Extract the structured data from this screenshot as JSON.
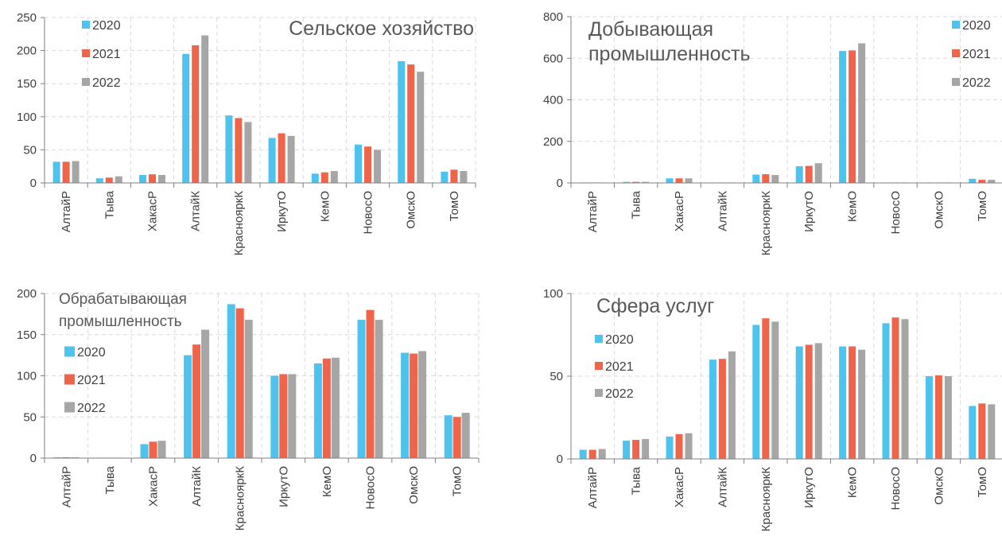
{
  "colors": {
    "2020": "#4ec3ee",
    "2021": "#f0644a",
    "2022": "#a6a6a6"
  },
  "chart_data": [
    {
      "type": "bar",
      "title_lines": [
        "Сельское хозяйство"
      ],
      "categories": [
        "АлтайР",
        "Тыва",
        "ХакасР",
        "АлтайК",
        "КраснояркК",
        "ИркутО",
        "КемО",
        "НовосО",
        "ОмскО",
        "ТомО"
      ],
      "series": [
        {
          "name": "2020",
          "values": [
            32,
            7,
            12,
            195,
            102,
            68,
            14,
            58,
            184,
            17
          ]
        },
        {
          "name": "2021",
          "values": [
            32,
            8,
            13,
            208,
            98,
            75,
            16,
            55,
            179,
            20
          ]
        },
        {
          "name": "2022",
          "values": [
            33,
            10,
            12,
            223,
            92,
            71,
            18,
            50,
            168,
            18
          ]
        }
      ],
      "ylim": [
        0,
        250
      ],
      "yticks": [
        0,
        50,
        100,
        150,
        200,
        250
      ],
      "grid": true,
      "legend": "top-left"
    },
    {
      "type": "bar",
      "title_lines": [
        "Добывающая",
        "промышленность"
      ],
      "categories": [
        "АлтайР",
        "Тыва",
        "ХакасР",
        "АлтайК",
        "КраснояркК",
        "ИркутО",
        "КемО",
        "НовосО",
        "ОмскО",
        "ТомО"
      ],
      "series": [
        {
          "name": "2020",
          "values": [
            1,
            5,
            22,
            1,
            40,
            80,
            635,
            1,
            1,
            20
          ]
        },
        {
          "name": "2021",
          "values": [
            1,
            5,
            22,
            1,
            42,
            82,
            638,
            1,
            1,
            15
          ]
        },
        {
          "name": "2022",
          "values": [
            1,
            5,
            22,
            1,
            38,
            95,
            672,
            1,
            1,
            15
          ]
        }
      ],
      "ylim": [
        0,
        800
      ],
      "yticks": [
        0,
        200,
        400,
        600,
        800
      ],
      "grid": true,
      "legend": "top-right"
    },
    {
      "type": "bar",
      "title_lines": [
        "Обрабатывающая",
        "промышленность"
      ],
      "categories": [
        "АлтайР",
        "Тыва",
        "ХакасР",
        "АлтайК",
        "КраснояркК",
        "ИркутО",
        "КемО",
        "НовосО",
        "ОмскО",
        "ТомО"
      ],
      "series": [
        {
          "name": "2020",
          "values": [
            1,
            0.5,
            17,
            125,
            187,
            100,
            115,
            168,
            128,
            52
          ]
        },
        {
          "name": "2021",
          "values": [
            1,
            0.5,
            20,
            138,
            182,
            102,
            121,
            180,
            127,
            50
          ]
        },
        {
          "name": "2022",
          "values": [
            1,
            0.5,
            21,
            156,
            168,
            102,
            122,
            168,
            130,
            55
          ]
        }
      ],
      "ylim": [
        0,
        200
      ],
      "yticks": [
        0,
        50,
        100,
        150,
        200
      ],
      "grid": true,
      "legend": "top-left"
    },
    {
      "type": "bar",
      "title_lines": [
        "Сфера услуг"
      ],
      "categories": [
        "АлтайР",
        "Тыва",
        "ХакасР",
        "АлтайК",
        "КраснояркК",
        "ИркутО",
        "КемО",
        "НовосО",
        "ОмскО",
        "ТомО"
      ],
      "series": [
        {
          "name": "2020",
          "values": [
            5.5,
            11,
            13.5,
            60,
            81,
            68,
            68,
            82,
            50,
            32
          ]
        },
        {
          "name": "2021",
          "values": [
            5.5,
            11.5,
            15,
            60.5,
            85,
            69,
            68,
            85.5,
            50.5,
            33.5
          ]
        },
        {
          "name": "2022",
          "values": [
            6,
            12,
            15.5,
            65,
            83,
            70,
            66,
            84.5,
            50,
            33
          ]
        }
      ],
      "ylim": [
        0,
        100
      ],
      "yticks": [
        0,
        50,
        100
      ],
      "grid": true,
      "legend": "top-left"
    }
  ]
}
